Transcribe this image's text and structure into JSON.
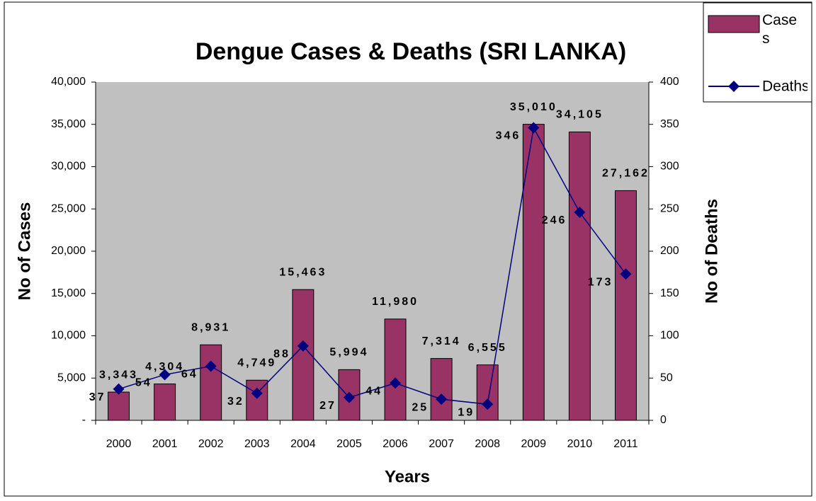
{
  "chart_data": {
    "type": "bar-line",
    "title": "Dengue Cases & Deaths (SRI LANKA)",
    "x_label": "Years",
    "y_label": "No of Cases",
    "y2_label": "No of Deaths",
    "categories": [
      "2000",
      "2001",
      "2002",
      "2003",
      "2004",
      "2005",
      "2006",
      "2007",
      "2008",
      "2009",
      "2010",
      "2011"
    ],
    "series": [
      {
        "name": "Cases",
        "type": "bar",
        "color": "#993366",
        "label_color": "#ffff00",
        "values": [
          3343,
          4304,
          8931,
          4749,
          15463,
          5994,
          11980,
          7314,
          6555,
          35010,
          34105,
          27162
        ],
        "value_labels": [
          "3,343",
          "4,304",
          "8,931",
          "4,749",
          "15,463",
          "5,994",
          "11,980",
          "7,314",
          "6,555",
          "35,010",
          "34,105",
          "27,162"
        ]
      },
      {
        "name": "Deaths",
        "type": "line",
        "axis": "y2",
        "color": "#000080",
        "label_color": "#00ff00",
        "values": [
          37,
          54,
          64,
          32,
          88,
          27,
          44,
          25,
          19,
          346,
          246,
          173
        ]
      }
    ],
    "ylim": [
      0,
      40000
    ],
    "yticks": [
      {
        "value": 0,
        "label": "-"
      },
      {
        "value": 5000,
        "label": "5,000"
      },
      {
        "value": 10000,
        "label": "10,000"
      },
      {
        "value": 15000,
        "label": "15,000"
      },
      {
        "value": 20000,
        "label": "20,000"
      },
      {
        "value": 25000,
        "label": "25,000"
      },
      {
        "value": 30000,
        "label": "30,000"
      },
      {
        "value": 35000,
        "label": "35,000"
      },
      {
        "value": 40000,
        "label": "40,000"
      }
    ],
    "y2lim": [
      0,
      400
    ],
    "y2ticks": [
      0,
      50,
      100,
      150,
      200,
      250,
      300,
      350,
      400
    ],
    "plot_background": "#c0c0c0",
    "legend": "top-right"
  }
}
